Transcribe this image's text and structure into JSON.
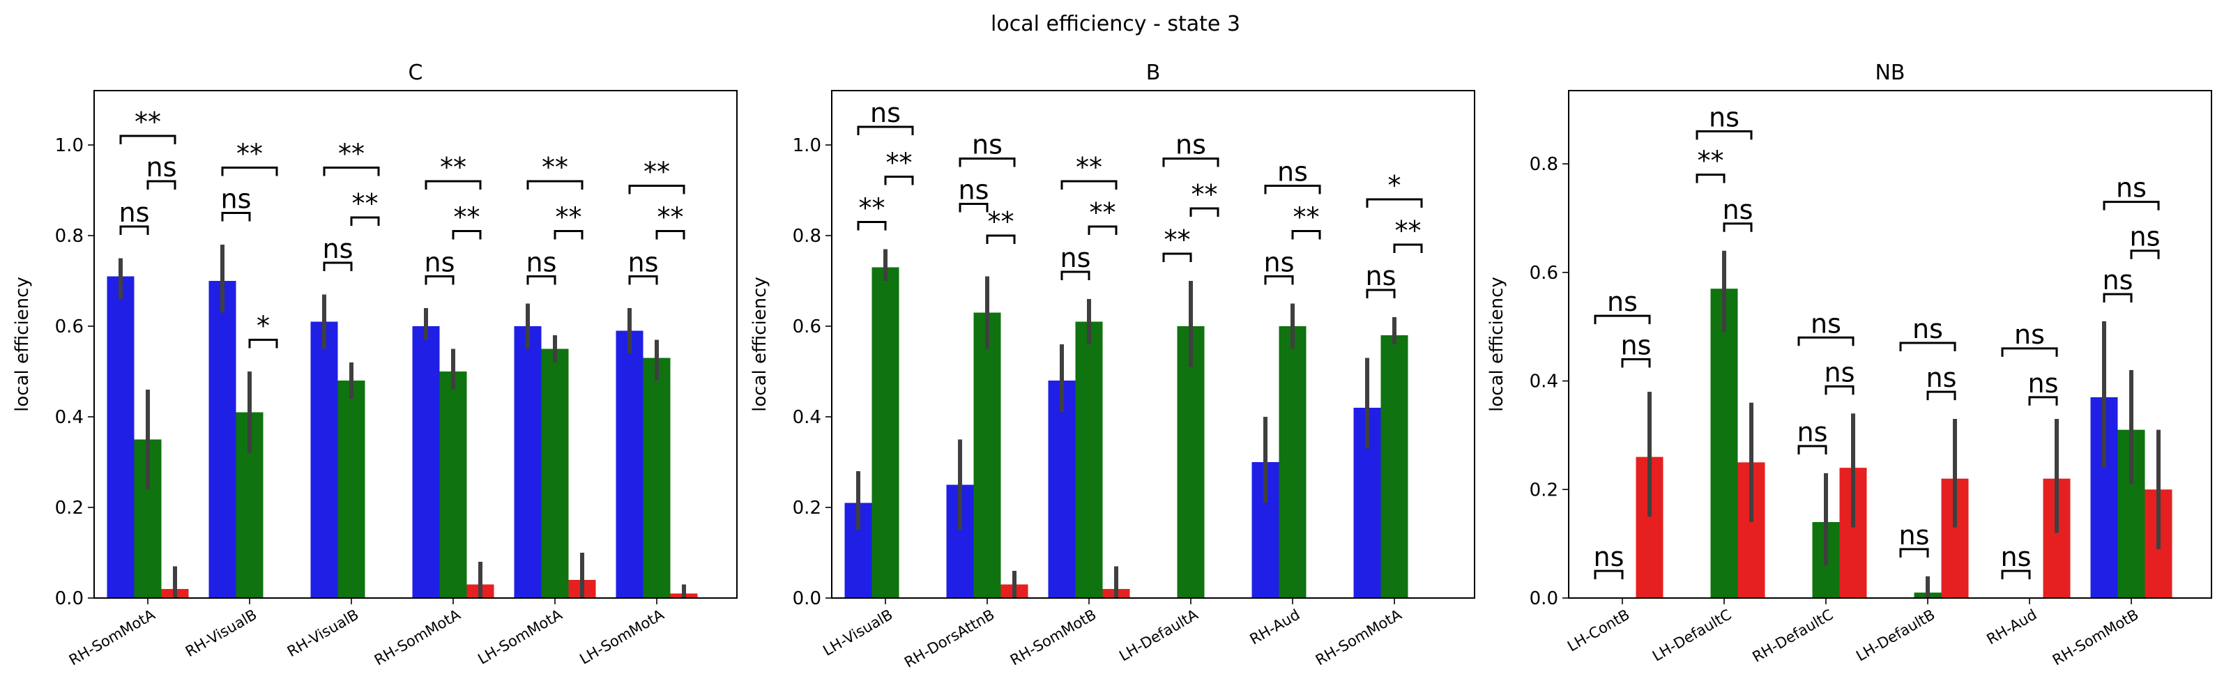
{
  "suptitle": "local efficiency - state 3",
  "colors": {
    "blue": "#1f1fe6",
    "green": "#0f730f",
    "red": "#e62020",
    "errbar": "#3f3f3f"
  },
  "chart_data": [
    {
      "type": "bar",
      "title": "C",
      "ylabel": "local efficiency",
      "ylim": [
        0,
        1.12
      ],
      "yticks": [
        "0.0",
        "0.2",
        "0.4",
        "0.6",
        "0.8",
        "1.0"
      ],
      "categories": [
        "RH-SomMotA",
        "RH-VisualB",
        "RH-VisualB",
        "RH-SomMotA",
        "LH-SomMotA",
        "LH-SomMotA"
      ],
      "series": [
        {
          "color": "blue",
          "values": [
            0.71,
            0.7,
            0.61,
            0.6,
            0.6,
            0.59
          ],
          "err_low": [
            0.66,
            0.63,
            0.55,
            0.57,
            0.55,
            0.54
          ],
          "err_high": [
            0.75,
            0.78,
            0.67,
            0.64,
            0.65,
            0.64
          ]
        },
        {
          "color": "green",
          "values": [
            0.35,
            0.41,
            0.48,
            0.5,
            0.55,
            0.53
          ],
          "err_low": [
            0.24,
            0.32,
            0.44,
            0.46,
            0.52,
            0.48
          ],
          "err_high": [
            0.46,
            0.5,
            0.52,
            0.55,
            0.58,
            0.57
          ]
        },
        {
          "color": "red",
          "values": [
            0.02,
            0.0,
            0.0,
            0.03,
            0.04,
            0.01
          ],
          "err_low": [
            0.0,
            0.0,
            0.0,
            0.0,
            0.0,
            0.0
          ],
          "err_high": [
            0.07,
            0.0,
            0.0,
            0.08,
            0.1,
            0.03
          ]
        }
      ],
      "annotations": [
        {
          "text": "**",
          "group": 0,
          "from": 0,
          "to": 2,
          "y": 1.02
        },
        {
          "text": "ns",
          "group": 0,
          "from": 1,
          "to": 2,
          "y": 0.92
        },
        {
          "text": "ns",
          "group": 0,
          "from": 0,
          "to": 1,
          "y": 0.82
        },
        {
          "text": "**",
          "group": 1,
          "from": 0,
          "to": 2,
          "y": 0.95
        },
        {
          "text": "ns",
          "group": 1,
          "from": 0,
          "to": 1,
          "y": 0.85
        },
        {
          "text": "*",
          "group": 1,
          "from": 1,
          "to": 2,
          "y": 0.57
        },
        {
          "text": "**",
          "group": 2,
          "from": 0,
          "to": 2,
          "y": 0.95
        },
        {
          "text": "**",
          "group": 2,
          "from": 1,
          "to": 2,
          "y": 0.84
        },
        {
          "text": "ns",
          "group": 2,
          "from": 0,
          "to": 1,
          "y": 0.74
        },
        {
          "text": "**",
          "group": 3,
          "from": 0,
          "to": 2,
          "y": 0.92
        },
        {
          "text": "**",
          "group": 3,
          "from": 1,
          "to": 2,
          "y": 0.81
        },
        {
          "text": "ns",
          "group": 3,
          "from": 0,
          "to": 1,
          "y": 0.71
        },
        {
          "text": "**",
          "group": 4,
          "from": 0,
          "to": 2,
          "y": 0.92
        },
        {
          "text": "**",
          "group": 4,
          "from": 1,
          "to": 2,
          "y": 0.81
        },
        {
          "text": "ns",
          "group": 4,
          "from": 0,
          "to": 1,
          "y": 0.71
        },
        {
          "text": "**",
          "group": 5,
          "from": 0,
          "to": 2,
          "y": 0.91
        },
        {
          "text": "**",
          "group": 5,
          "from": 1,
          "to": 2,
          "y": 0.81
        },
        {
          "text": "ns",
          "group": 5,
          "from": 0,
          "to": 1,
          "y": 0.71
        }
      ]
    },
    {
      "type": "bar",
      "title": "B",
      "ylabel": "local efficiency",
      "ylim": [
        0,
        1.12
      ],
      "yticks": [
        "0.0",
        "0.2",
        "0.4",
        "0.6",
        "0.8",
        "1.0"
      ],
      "categories": [
        "LH-VisualB",
        "RH-DorsAttnB",
        "RH-SomMotB",
        "LH-DefaultA",
        "RH-Aud",
        "RH-SomMotA"
      ],
      "series": [
        {
          "color": "blue",
          "values": [
            0.21,
            0.25,
            0.48,
            0.0,
            0.3,
            0.42
          ],
          "err_low": [
            0.15,
            0.15,
            0.41,
            0.0,
            0.21,
            0.33
          ],
          "err_high": [
            0.28,
            0.35,
            0.56,
            0.0,
            0.4,
            0.53
          ]
        },
        {
          "color": "green",
          "values": [
            0.73,
            0.63,
            0.61,
            0.6,
            0.6,
            0.58
          ],
          "err_low": [
            0.7,
            0.55,
            0.56,
            0.51,
            0.55,
            0.56
          ],
          "err_high": [
            0.77,
            0.71,
            0.66,
            0.7,
            0.65,
            0.62
          ]
        },
        {
          "color": "red",
          "values": [
            0.0,
            0.03,
            0.02,
            0.0,
            0.0,
            0.0
          ],
          "err_low": [
            0.0,
            0.0,
            0.0,
            0.0,
            0.0,
            0.0
          ],
          "err_high": [
            0.0,
            0.06,
            0.07,
            0.0,
            0.0,
            0.0
          ]
        }
      ],
      "annotations": [
        {
          "text": "ns",
          "group": 0,
          "from": 0,
          "to": 2,
          "y": 1.04
        },
        {
          "text": "**",
          "group": 0,
          "from": 1,
          "to": 2,
          "y": 0.93
        },
        {
          "text": "**",
          "group": 0,
          "from": 0,
          "to": 1,
          "y": 0.83
        },
        {
          "text": "ns",
          "group": 1,
          "from": 0,
          "to": 2,
          "y": 0.97
        },
        {
          "text": "ns",
          "group": 1,
          "from": 0,
          "to": 1,
          "y": 0.87
        },
        {
          "text": "**",
          "group": 1,
          "from": 1,
          "to": 2,
          "y": 0.8
        },
        {
          "text": "**",
          "group": 2,
          "from": 0,
          "to": 2,
          "y": 0.92
        },
        {
          "text": "**",
          "group": 2,
          "from": 1,
          "to": 2,
          "y": 0.82
        },
        {
          "text": "ns",
          "group": 2,
          "from": 0,
          "to": 1,
          "y": 0.72
        },
        {
          "text": "ns",
          "group": 3,
          "from": 0,
          "to": 2,
          "y": 0.97
        },
        {
          "text": "**",
          "group": 3,
          "from": 1,
          "to": 2,
          "y": 0.86
        },
        {
          "text": "**",
          "group": 3,
          "from": 0,
          "to": 1,
          "y": 0.76
        },
        {
          "text": "ns",
          "group": 4,
          "from": 0,
          "to": 2,
          "y": 0.91
        },
        {
          "text": "**",
          "group": 4,
          "from": 1,
          "to": 2,
          "y": 0.81
        },
        {
          "text": "ns",
          "group": 4,
          "from": 0,
          "to": 1,
          "y": 0.71
        },
        {
          "text": "*",
          "group": 5,
          "from": 0,
          "to": 2,
          "y": 0.88
        },
        {
          "text": "**",
          "group": 5,
          "from": 1,
          "to": 2,
          "y": 0.78
        },
        {
          "text": "ns",
          "group": 5,
          "from": 0,
          "to": 1,
          "y": 0.68
        }
      ]
    },
    {
      "type": "bar",
      "title": "NB",
      "ylabel": "local efficiency",
      "ylim": [
        0,
        0.935
      ],
      "yticks": [
        "0.0",
        "0.2",
        "0.4",
        "0.6",
        "0.8"
      ],
      "categories": [
        "LH-ContB",
        "LH-DefaultC",
        "RH-DefaultC",
        "LH-DefaultB",
        "RH-Aud",
        "RH-SomMotB"
      ],
      "series": [
        {
          "color": "blue",
          "values": [
            0.0,
            0.0,
            0.0,
            0.0,
            0.0,
            0.37
          ],
          "err_low": [
            0.0,
            0.0,
            0.0,
            0.0,
            0.0,
            0.24
          ],
          "err_high": [
            0.0,
            0.0,
            0.0,
            0.0,
            0.0,
            0.51
          ]
        },
        {
          "color": "green",
          "values": [
            0.0,
            0.57,
            0.14,
            0.01,
            0.0,
            0.31
          ],
          "err_low": [
            0.0,
            0.49,
            0.06,
            0.0,
            0.0,
            0.21
          ],
          "err_high": [
            0.0,
            0.64,
            0.23,
            0.04,
            0.0,
            0.42
          ]
        },
        {
          "color": "red",
          "values": [
            0.26,
            0.25,
            0.24,
            0.22,
            0.22,
            0.2
          ],
          "err_low": [
            0.15,
            0.14,
            0.13,
            0.13,
            0.12,
            0.09
          ],
          "err_high": [
            0.38,
            0.36,
            0.34,
            0.33,
            0.33,
            0.31
          ]
        }
      ],
      "annotations": [
        {
          "text": "ns",
          "group": 0,
          "from": 0,
          "to": 2,
          "y": 0.52
        },
        {
          "text": "ns",
          "group": 0,
          "from": 1,
          "to": 2,
          "y": 0.44
        },
        {
          "text": "ns",
          "group": 0,
          "from": 0,
          "to": 1,
          "y": 0.05
        },
        {
          "text": "ns",
          "group": 1,
          "from": 0,
          "to": 2,
          "y": 0.86
        },
        {
          "text": "**",
          "group": 1,
          "from": 0,
          "to": 1,
          "y": 0.78
        },
        {
          "text": "ns",
          "group": 1,
          "from": 1,
          "to": 2,
          "y": 0.69
        },
        {
          "text": "ns",
          "group": 2,
          "from": 0,
          "to": 2,
          "y": 0.48
        },
        {
          "text": "ns",
          "group": 2,
          "from": 1,
          "to": 2,
          "y": 0.39
        },
        {
          "text": "ns",
          "group": 2,
          "from": 0,
          "to": 1,
          "y": 0.28
        },
        {
          "text": "ns",
          "group": 3,
          "from": 0,
          "to": 2,
          "y": 0.47
        },
        {
          "text": "ns",
          "group": 3,
          "from": 1,
          "to": 2,
          "y": 0.38
        },
        {
          "text": "ns",
          "group": 3,
          "from": 0,
          "to": 1,
          "y": 0.09
        },
        {
          "text": "ns",
          "group": 4,
          "from": 0,
          "to": 2,
          "y": 0.46
        },
        {
          "text": "ns",
          "group": 4,
          "from": 1,
          "to": 2,
          "y": 0.37
        },
        {
          "text": "ns",
          "group": 4,
          "from": 0,
          "to": 1,
          "y": 0.05
        },
        {
          "text": "ns",
          "group": 5,
          "from": 0,
          "to": 2,
          "y": 0.73
        },
        {
          "text": "ns",
          "group": 5,
          "from": 1,
          "to": 2,
          "y": 0.64
        },
        {
          "text": "ns",
          "group": 5,
          "from": 0,
          "to": 1,
          "y": 0.56
        }
      ]
    }
  ]
}
